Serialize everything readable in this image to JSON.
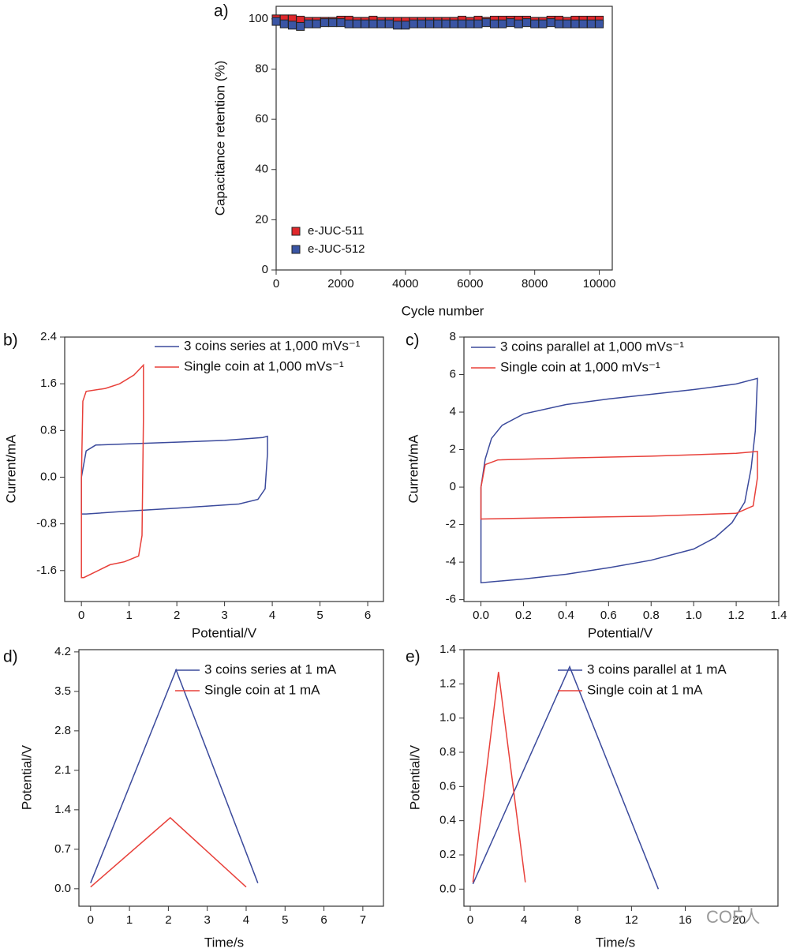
{
  "chart_data": [
    {
      "type": "scatter",
      "label": "a)",
      "xlabel": "Cycle number",
      "ylabel": "Capacitance retention (%)",
      "xlim": [
        0,
        10400
      ],
      "xticks": [
        0,
        2000,
        4000,
        6000,
        8000,
        10000
      ],
      "ylim": [
        0,
        105
      ],
      "yticks": [
        0,
        20,
        40,
        60,
        80,
        100
      ],
      "x": [
        0,
        250,
        500,
        750,
        1000,
        1250,
        1500,
        1750,
        2000,
        2250,
        2500,
        2750,
        3000,
        3250,
        3500,
        3750,
        4000,
        4250,
        4500,
        4750,
        5000,
        5250,
        5500,
        5750,
        6000,
        6250,
        6500,
        6750,
        7000,
        7250,
        7500,
        7750,
        8000,
        8250,
        8500,
        8750,
        9000,
        9250,
        9500,
        9750,
        10000
      ],
      "series": [
        {
          "name": "e-JUC-511",
          "color": "#e0282c",
          "values": [
            100,
            100,
            100,
            99.5,
            99,
            99,
            99,
            99,
            99.5,
            99.5,
            99,
            99,
            99.5,
            99,
            99,
            99,
            99,
            99,
            99,
            99,
            99,
            99,
            99,
            99.5,
            99,
            99.5,
            99,
            99.5,
            99.5,
            99.5,
            99.5,
            99.5,
            99,
            99,
            99.5,
            99.5,
            99,
            99.5,
            99.5,
            99.5,
            99.5
          ]
        },
        {
          "name": "e-JUC-512",
          "color": "#3a55a4",
          "values": [
            99,
            98,
            97.5,
            97,
            98,
            98,
            98.5,
            98.5,
            98.5,
            98,
            98,
            98,
            98,
            98,
            98,
            97.5,
            97.5,
            98,
            98,
            98,
            98,
            98,
            98,
            98,
            98,
            98,
            98.5,
            98,
            98,
            98.5,
            98,
            98.5,
            98,
            98,
            98.5,
            98,
            98,
            98,
            98,
            98,
            98
          ]
        }
      ]
    },
    {
      "type": "line",
      "label": "b)",
      "xlabel": "Potential/V",
      "ylabel": "Current/mA",
      "xlim": [
        -0.35,
        6.33
      ],
      "xticks": [
        0,
        1,
        2,
        3,
        4,
        5,
        6
      ],
      "ylim": [
        -2.13,
        2.4
      ],
      "yticks": [
        -1.6,
        -0.8,
        {
          "value": 0,
          "label": "0.0"
        },
        0.8,
        1.6,
        2.4
      ],
      "series": [
        {
          "name": "3 coins series at 1,000 mVs⁻¹",
          "color": "#3b4a9c",
          "x": [
            0,
            0.1,
            0.3,
            1,
            2,
            3,
            3.8,
            3.9,
            3.9,
            3.85,
            3.7,
            3.3,
            2,
            1,
            0.1,
            0,
            0
          ],
          "values": [
            0,
            0.45,
            0.55,
            0.57,
            0.6,
            0.63,
            0.68,
            0.7,
            0.4,
            -0.2,
            -0.38,
            -0.46,
            -0.53,
            -0.58,
            -0.63,
            -0.63,
            0
          ]
        },
        {
          "name": "Single coin at 1,000 mVs⁻¹",
          "color": "#e8403a",
          "x": [
            0,
            0.03,
            0.1,
            0.5,
            0.8,
            1.1,
            1.3,
            1.3,
            1.27,
            1.2,
            0.9,
            0.6,
            0.3,
            0.05,
            0,
            0
          ],
          "values": [
            0,
            1.3,
            1.47,
            1.52,
            1.6,
            1.75,
            1.92,
            1.0,
            -1.0,
            -1.35,
            -1.45,
            -1.5,
            -1.62,
            -1.72,
            -1.72,
            0
          ]
        }
      ]
    },
    {
      "type": "line",
      "label": "c)",
      "xlabel": "Potential/V",
      "ylabel": "Current/mA",
      "xlim": [
        -0.08,
        1.4
      ],
      "xticks": [
        {
          "value": 0,
          "label": "0.0"
        },
        0.2,
        0.4,
        0.6,
        0.8,
        {
          "value": 1,
          "label": "1.0"
        },
        1.2,
        1.4
      ],
      "ylim": [
        -6.1,
        8
      ],
      "yticks": [
        -6,
        -4,
        -2,
        0,
        2,
        4,
        6,
        8
      ],
      "series": [
        {
          "name": "3 coins parallel at 1,000 mVs⁻¹",
          "color": "#3b4a9c",
          "x": [
            0,
            0.02,
            0.05,
            0.1,
            0.2,
            0.4,
            0.6,
            0.8,
            1.0,
            1.2,
            1.3,
            1.29,
            1.27,
            1.24,
            1.18,
            1.1,
            1.0,
            0.8,
            0.6,
            0.4,
            0.2,
            0,
            0
          ],
          "values": [
            0,
            1.5,
            2.6,
            3.3,
            3.9,
            4.4,
            4.7,
            4.95,
            5.2,
            5.5,
            5.8,
            3,
            1,
            -0.8,
            -1.9,
            -2.7,
            -3.3,
            -3.9,
            -4.3,
            -4.65,
            -4.9,
            -5.1,
            0
          ]
        },
        {
          "name": "Single coin at 1,000 mVs⁻¹",
          "color": "#e8403a",
          "x": [
            0,
            0.02,
            0.08,
            0.4,
            0.8,
            1.2,
            1.3,
            1.3,
            1.28,
            1.2,
            0.8,
            0.4,
            0,
            0
          ],
          "values": [
            0,
            1.2,
            1.45,
            1.55,
            1.65,
            1.8,
            1.9,
            0.5,
            -1.0,
            -1.4,
            -1.55,
            -1.62,
            -1.7,
            0
          ]
        }
      ]
    },
    {
      "type": "line",
      "label": "d)",
      "xlabel": "Time/s",
      "ylabel": "Potential/V",
      "xlim": [
        -0.3,
        7.53
      ],
      "xticks": [
        0,
        1,
        2,
        3,
        4,
        5,
        6,
        7
      ],
      "ylim": [
        -0.31,
        4.24
      ],
      "yticks": [
        {
          "value": 0,
          "label": "0.0"
        },
        0.7,
        1.4,
        2.1,
        2.8,
        3.5,
        4.2
      ],
      "series": [
        {
          "name": "3 coins series at 1 mA",
          "color": "#3b4a9c",
          "x": [
            0,
            2.2,
            4.3
          ],
          "values": [
            0.1,
            3.88,
            0.1
          ]
        },
        {
          "name": "Single coin at 1 mA",
          "color": "#e8403a",
          "x": [
            0,
            2.05,
            4
          ],
          "values": [
            0.03,
            1.26,
            0.03
          ]
        }
      ]
    },
    {
      "type": "line",
      "label": "e)",
      "xlabel": "Time/s",
      "ylabel": "Potential/V",
      "xlim": [
        -0.47,
        22.9
      ],
      "xticks": [
        0,
        4,
        8,
        12,
        16,
        20
      ],
      "ylim": [
        -0.1,
        1.4
      ],
      "yticks": [
        {
          "value": 0,
          "label": "0.0"
        },
        0.2,
        0.4,
        0.6,
        0.8,
        {
          "value": 1,
          "label": "1.0"
        },
        1.2,
        1.4
      ],
      "watermark": "COF人",
      "series": [
        {
          "name": "3 coins parallel at 1 mA",
          "color": "#3b4a9c",
          "x": [
            0.2,
            7.4,
            14
          ],
          "values": [
            0.03,
            1.3,
            0
          ]
        },
        {
          "name": "Single coin at 1 mA",
          "color": "#e8403a",
          "x": [
            0.2,
            2.1,
            4.1
          ],
          "values": [
            0.04,
            1.27,
            0.04
          ]
        }
      ]
    }
  ]
}
